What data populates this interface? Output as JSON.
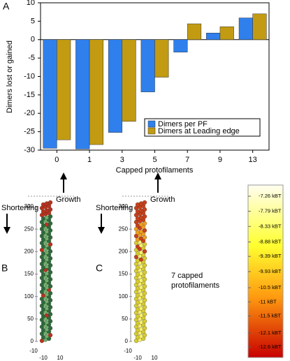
{
  "chart_data": {
    "type": "bar",
    "title": "A",
    "categories": [
      "0",
      "1",
      "3",
      "5",
      "7",
      "9",
      "13"
    ],
    "series": [
      {
        "name": "Dimers per PF",
        "color": "#2f80ed",
        "values": [
          -29.5,
          -29.7,
          -25.2,
          -14.2,
          -3.4,
          1.8,
          5.9
        ]
      },
      {
        "name": "Dimers at Leading edge",
        "color": "#c29b12",
        "values": [
          -27.2,
          -28.5,
          -22.2,
          -10.2,
          4.3,
          3.5,
          7.0
        ]
      }
    ],
    "y_label": "Dimers lost or gained",
    "x_label": "Capped protofilaments",
    "ylim": [
      -30,
      10
    ],
    "yticks": [
      -30,
      -25,
      -20,
      -15,
      -10,
      -5,
      0,
      5,
      10
    ],
    "legend": "lower right"
  },
  "panels": [
    {
      "label": "B",
      "ylim": [
        0,
        300
      ],
      "yticks": [
        0,
        50,
        100,
        150,
        200,
        250,
        300
      ],
      "bottom_labels": [
        "-10",
        "-10",
        "10"
      ],
      "shortening": "Shortening",
      "growth": "Growth"
    },
    {
      "label": "C",
      "ylim": [
        0,
        300
      ],
      "yticks": [
        0,
        50,
        100,
        150,
        200,
        250,
        300
      ],
      "bottom_labels": [
        "-10",
        "-10",
        "10"
      ],
      "shortening": "Shortening",
      "growth": "Growth",
      "note": "7 capped protofilaments"
    }
  ],
  "colorbar": {
    "lim": [
      -12.6,
      -7.26
    ],
    "ticks": [
      {
        "value": -7.26,
        "label": "-7.26 kBT"
      },
      {
        "value": -7.79,
        "label": "-7.79 kBT"
      },
      {
        "value": -8.33,
        "label": "-8.33 kBT"
      },
      {
        "value": -8.88,
        "label": "-8.88 kBT"
      },
      {
        "value": -9.39,
        "label": "-9.39 kBT"
      },
      {
        "value": -9.93,
        "label": "-9.93 kBT"
      },
      {
        "value": -10.5,
        "label": "-10.5 kBT"
      },
      {
        "value": -11,
        "label": "-11 kBT"
      },
      {
        "value": -11.5,
        "label": "-11.5 kBT"
      },
      {
        "value": -12.1,
        "label": "-12.1 kBT"
      },
      {
        "value": -12.6,
        "label": "-12.6 kBT"
      }
    ]
  }
}
